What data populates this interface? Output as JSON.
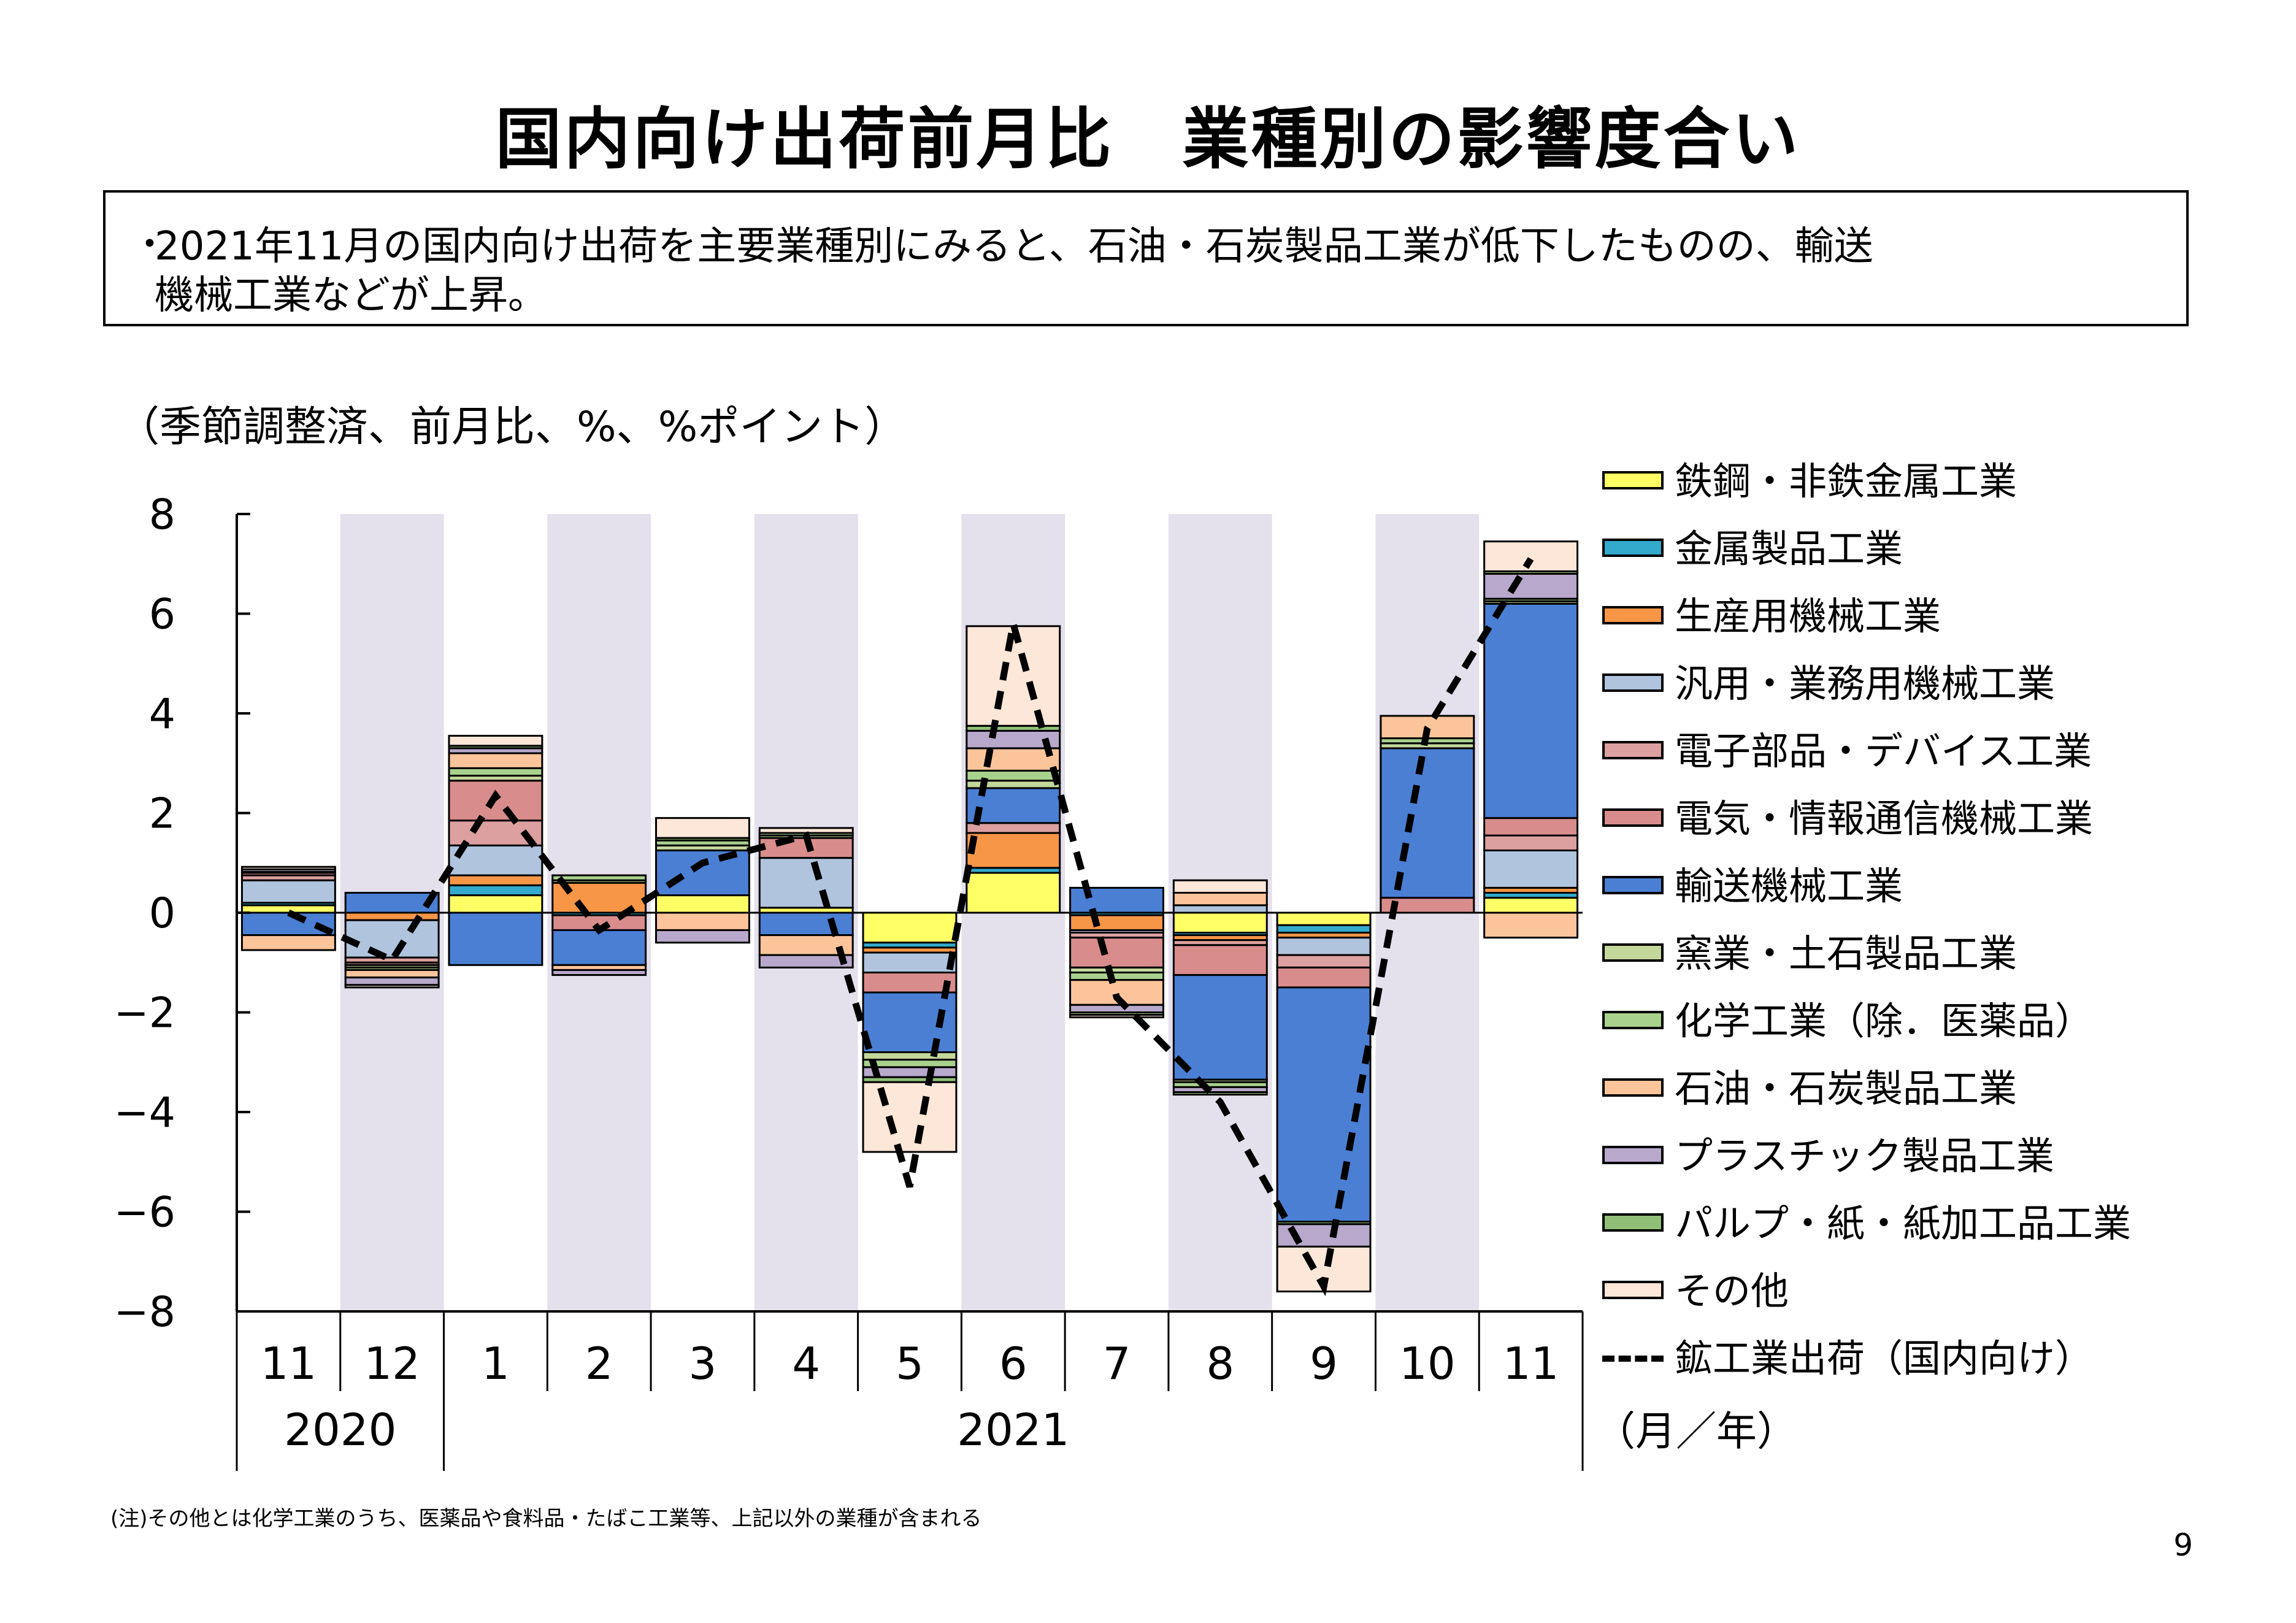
{
  "title": "国内向け出荷前月比　業種別の影響度合い",
  "summary": {
    "bullet": "・",
    "line1": "2021年11月の国内向け出荷を主要業種別にみると、石油・石炭製品工業が低下したものの、輸送",
    "line2": "機械工業などが上昇。"
  },
  "unit_label": "（季節調整済、前月比、%、%ポイント）",
  "note": "(注)その他とは化学工業のうち、医薬品や食料品・たばこ工業等、上記以外の業種が含まれる",
  "page_number": "9",
  "chart_data": {
    "type": "bar",
    "stacked": true,
    "ylim": [
      -8,
      8
    ],
    "yticks": [
      8,
      6,
      4,
      2,
      0,
      -2,
      -4,
      -6,
      -8
    ],
    "categories": [
      "11",
      "12",
      "1",
      "2",
      "3",
      "4",
      "5",
      "6",
      "7",
      "8",
      "9",
      "10",
      "11"
    ],
    "year_labels": [
      {
        "label": "2020",
        "from": 0,
        "to": 1
      },
      {
        "label": "2021",
        "from": 2,
        "to": 12
      }
    ],
    "x_unit_label": "（月／年）",
    "shaded_columns": [
      1,
      3,
      5,
      7,
      9,
      11
    ],
    "shade_color": "#e4e0ec",
    "series": [
      {
        "name": "鉄鋼・非鉄金属工業",
        "color": "#ffff66",
        "values": [
          0.15,
          0.0,
          0.35,
          0.0,
          0.35,
          0.1,
          -0.6,
          0.8,
          0.0,
          -0.4,
          -0.25,
          0.0,
          0.3
        ]
      },
      {
        "name": "金属製品工業",
        "color": "#33aacc",
        "values": [
          0.05,
          0.0,
          0.2,
          -0.05,
          0.0,
          0.0,
          -0.1,
          0.1,
          -0.05,
          -0.05,
          -0.15,
          0.0,
          0.1
        ]
      },
      {
        "name": "生産用機械工業",
        "color": "#f79646",
        "values": [
          0.0,
          -0.15,
          0.2,
          0.6,
          0.0,
          0.0,
          -0.1,
          0.7,
          -0.3,
          -0.1,
          -0.1,
          0.0,
          0.1
        ]
      },
      {
        "name": "汎用・業務用機械工業",
        "color": "#b0c4de",
        "values": [
          0.45,
          -0.75,
          0.6,
          0.0,
          0.0,
          1.0,
          -0.4,
          0.0,
          -0.05,
          0.15,
          -0.35,
          0.0,
          0.75
        ]
      },
      {
        "name": "電子部品・デバイス工業",
        "color": "#dda0a0",
        "values": [
          0.1,
          -0.1,
          0.5,
          0.0,
          0.0,
          0.0,
          0.0,
          0.2,
          -0.1,
          -0.1,
          -0.25,
          0.0,
          0.3
        ]
      },
      {
        "name": "電気・情報通信機械工業",
        "color": "#d98c8c",
        "values": [
          0.05,
          -0.05,
          0.8,
          -0.3,
          0.0,
          0.4,
          -0.4,
          0.0,
          -0.6,
          -0.6,
          -0.4,
          0.3,
          0.35
        ]
      },
      {
        "name": "輸送機械工業",
        "color": "#4a7fd4",
        "values": [
          -0.45,
          0.4,
          -1.05,
          -0.7,
          0.9,
          -0.45,
          -1.2,
          0.7,
          0.5,
          -2.1,
          -4.7,
          3.0,
          4.3
        ]
      },
      {
        "name": "窯業・土石製品工業",
        "color": "#c4d79b",
        "values": [
          0.02,
          -0.05,
          0.1,
          0.05,
          0.1,
          0.05,
          -0.15,
          0.15,
          -0.1,
          -0.05,
          0.0,
          0.1,
          0.05
        ]
      },
      {
        "name": "化学工業（除．医薬品）",
        "color": "#a9d18e",
        "values": [
          0.0,
          -0.05,
          0.15,
          0.1,
          0.1,
          0.05,
          -0.15,
          0.2,
          -0.15,
          -0.1,
          -0.05,
          0.1,
          0.05
        ]
      },
      {
        "name": "石油・石炭製品工業",
        "color": "#fbc49a",
        "values": [
          -0.3,
          -0.15,
          0.3,
          -0.1,
          -0.35,
          -0.4,
          0.0,
          0.45,
          -0.5,
          0.25,
          0.0,
          0.45,
          -0.5
        ]
      },
      {
        "name": "プラスチック製品工業",
        "color": "#b8a8cc",
        "values": [
          0.05,
          -0.15,
          0.1,
          -0.1,
          -0.25,
          -0.25,
          -0.2,
          0.35,
          -0.15,
          -0.1,
          -0.45,
          0.0,
          0.5
        ]
      },
      {
        "name": "パルプ・紙・紙加工品工業",
        "color": "#90c078",
        "values": [
          0.0,
          0.0,
          0.05,
          0.0,
          0.05,
          0.0,
          -0.1,
          0.1,
          -0.05,
          -0.05,
          0.0,
          0.0,
          0.05
        ]
      },
      {
        "name": "その他",
        "color": "#fde7d9",
        "values": [
          0.05,
          -0.05,
          0.2,
          0.0,
          0.4,
          0.1,
          -1.4,
          2.0,
          -0.05,
          0.25,
          -0.9,
          0.0,
          0.6
        ]
      }
    ],
    "line": {
      "name": "鉱工業出荷（国内向け）",
      "values": [
        0.0,
        -0.95,
        2.35,
        -0.35,
        1.0,
        1.55,
        -5.5,
        5.8,
        -1.7,
        -3.8,
        -7.5,
        3.7,
        7.1
      ]
    }
  }
}
